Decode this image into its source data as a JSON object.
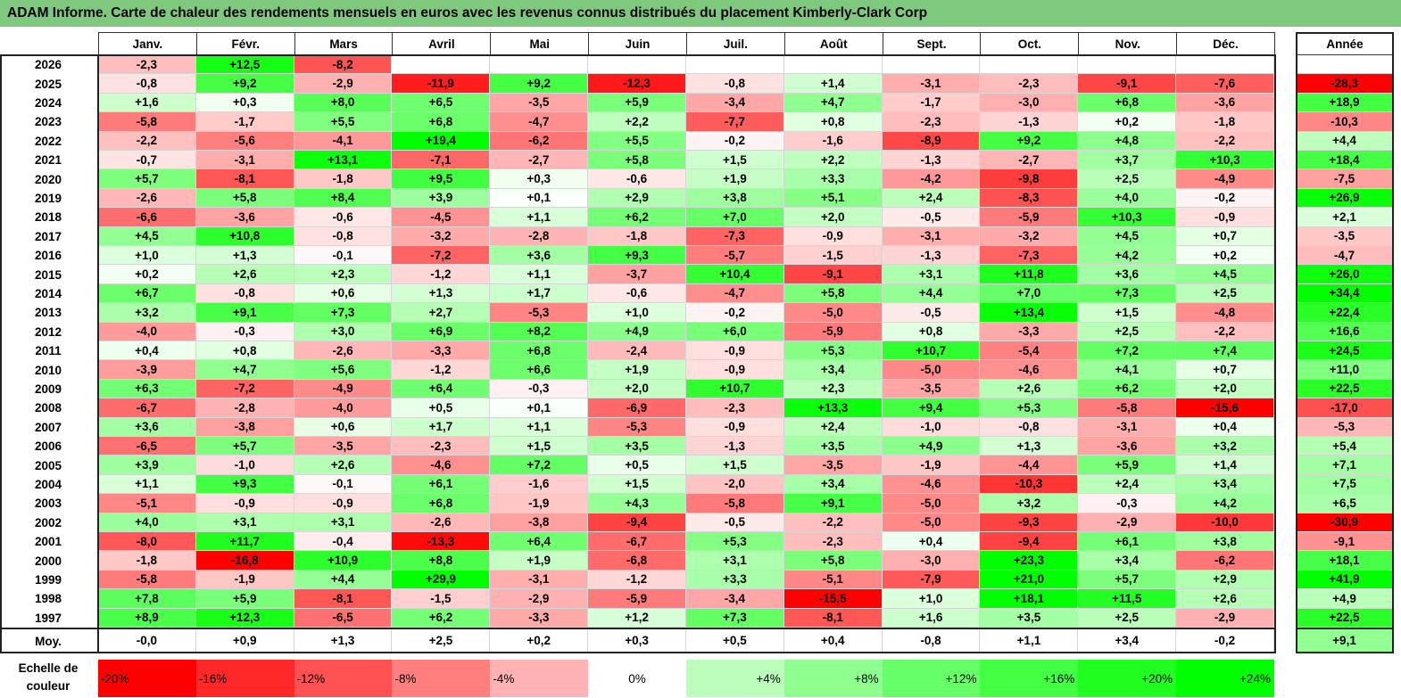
{
  "title": "ADAM Informe. Carte de chaleur des rendements mensuels en euros avec les revenus connus distribués du placement Kimberly-Clark Corp",
  "chart_data": {
    "type": "heatmap",
    "title": "ADAM Informe. Carte de chaleur des rendements mensuels en euros avec les revenus connus distribués du placement Kimberly-Clark Corp",
    "columns": [
      "Janv.",
      "Févr.",
      "Mars",
      "Avril",
      "Mai",
      "Juin",
      "Juil.",
      "Août",
      "Sept.",
      "Oct.",
      "Nov.",
      "Déc."
    ],
    "year_column": "Année",
    "rows": [
      {
        "label": "2026",
        "values": [
          "-2,3",
          "+12,5",
          "-8,2",
          "",
          "",
          "",
          "",
          "",
          "",
          "",
          "",
          ""
        ],
        "annual": ""
      },
      {
        "label": "2025",
        "values": [
          "-0,8",
          "+9,2",
          "-2,9",
          "-11,9",
          "+9,2",
          "-12,3",
          "-0,8",
          "+1,4",
          "-3,1",
          "-2,3",
          "-9,1",
          "-7,6"
        ],
        "annual": "-28,3"
      },
      {
        "label": "2024",
        "values": [
          "+1,6",
          "+0,3",
          "+8,0",
          "+6,5",
          "-3,5",
          "+5,9",
          "-3,4",
          "+4,7",
          "-1,7",
          "-3,0",
          "+6,8",
          "-3,6"
        ],
        "annual": "+18,9"
      },
      {
        "label": "2023",
        "values": [
          "-5,8",
          "-1,7",
          "+5,5",
          "+6,8",
          "-4,7",
          "+2,2",
          "-7,7",
          "+0,8",
          "-2,3",
          "-1,3",
          "+0,2",
          "-1,8"
        ],
        "annual": "-10,3"
      },
      {
        "label": "2022",
        "values": [
          "-2,2",
          "-5,6",
          "-4,1",
          "+19,4",
          "-6,2",
          "+5,5",
          "-0,2",
          "-1,6",
          "-8,9",
          "+9,2",
          "+4,8",
          "-2,2"
        ],
        "annual": "+4,4"
      },
      {
        "label": "2021",
        "values": [
          "-0,7",
          "-3,1",
          "+13,1",
          "-7,1",
          "-2,7",
          "+5,8",
          "+1,5",
          "+2,2",
          "-1,3",
          "-2,7",
          "+3,7",
          "+10,3"
        ],
        "annual": "+18,4"
      },
      {
        "label": "2020",
        "values": [
          "+5,7",
          "-8,1",
          "-1,8",
          "+9,5",
          "+0,3",
          "-0,6",
          "+1,9",
          "+3,3",
          "-4,2",
          "-9,8",
          "+2,5",
          "-4,9"
        ],
        "annual": "-7,5"
      },
      {
        "label": "2019",
        "values": [
          "-2,6",
          "+5,8",
          "+8,4",
          "+3,9",
          "+0,1",
          "+2,9",
          "+3,8",
          "+5,1",
          "+2,4",
          "-8,3",
          "+4,0",
          "-0,2"
        ],
        "annual": "+26,9"
      },
      {
        "label": "2018",
        "values": [
          "-6,6",
          "-3,6",
          "-0,6",
          "-4,5",
          "+1,1",
          "+6,2",
          "+7,0",
          "+2,0",
          "-0,5",
          "-5,9",
          "+10,3",
          "-0,9"
        ],
        "annual": "+2,1"
      },
      {
        "label": "2017",
        "values": [
          "+4,5",
          "+10,8",
          "-0,8",
          "-3,2",
          "-2,8",
          "-1,8",
          "-7,3",
          "-0,9",
          "-3,1",
          "-3,2",
          "+4,5",
          "+0,7"
        ],
        "annual": "-3,5"
      },
      {
        "label": "2016",
        "values": [
          "+1,0",
          "+1,3",
          "-0,1",
          "-7,2",
          "+3,6",
          "+9,3",
          "-5,7",
          "-1,5",
          "-1,3",
          "-7,3",
          "+4,2",
          "+0,2"
        ],
        "annual": "-4,7"
      },
      {
        "label": "2015",
        "values": [
          "+0,2",
          "+2,6",
          "+2,3",
          "-1,2",
          "+1,1",
          "-3,7",
          "+10,4",
          "-9,1",
          "+3,1",
          "+11,8",
          "+3,6",
          "+4,5"
        ],
        "annual": "+26,0"
      },
      {
        "label": "2014",
        "values": [
          "+6,7",
          "-0,8",
          "+0,6",
          "+1,3",
          "+1,7",
          "-0,6",
          "-4,7",
          "+5,8",
          "+4,4",
          "+7,0",
          "+7,3",
          "+2,5"
        ],
        "annual": "+34,4"
      },
      {
        "label": "2013",
        "values": [
          "+3,2",
          "+9,1",
          "+7,3",
          "+2,7",
          "-5,3",
          "+1,0",
          "-0,2",
          "-5,0",
          "-0,5",
          "+13,4",
          "+1,5",
          "-4,8"
        ],
        "annual": "+22,4"
      },
      {
        "label": "2012",
        "values": [
          "-4,0",
          "-0,3",
          "+3,0",
          "+6,9",
          "+8,2",
          "+4,9",
          "+6,0",
          "-5,9",
          "+0,8",
          "-3,3",
          "+2,5",
          "-2,2"
        ],
        "annual": "+16,6"
      },
      {
        "label": "2011",
        "values": [
          "+0,4",
          "+0,8",
          "-2,6",
          "-3,3",
          "+6,8",
          "-2,4",
          "-0,9",
          "+5,3",
          "+10,7",
          "-5,4",
          "+7,2",
          "+7,4"
        ],
        "annual": "+24,5"
      },
      {
        "label": "2010",
        "values": [
          "-3,9",
          "+4,7",
          "+5,6",
          "-1,2",
          "+6,6",
          "+1,9",
          "-0,9",
          "+3,4",
          "-5,0",
          "-4,6",
          "+4,1",
          "+0,7"
        ],
        "annual": "+11,0"
      },
      {
        "label": "2009",
        "values": [
          "+6,3",
          "-7,2",
          "-4,9",
          "+6,4",
          "-0,3",
          "+2,0",
          "+10,7",
          "+2,3",
          "-3,5",
          "+2,6",
          "+6,2",
          "+2,0"
        ],
        "annual": "+22,5"
      },
      {
        "label": "2008",
        "values": [
          "-6,7",
          "-2,8",
          "-4,0",
          "+0,5",
          "+0,1",
          "-6,9",
          "-2,3",
          "+13,3",
          "+9,4",
          "+5,3",
          "-5,8",
          "-15,6"
        ],
        "annual": "-17,0"
      },
      {
        "label": "2007",
        "values": [
          "+3,6",
          "-3,8",
          "+0,6",
          "+1,7",
          "+1,1",
          "-5,3",
          "-0,9",
          "+2,4",
          "-1,0",
          "-0,8",
          "-3,1",
          "+0,4"
        ],
        "annual": "-5,3"
      },
      {
        "label": "2006",
        "values": [
          "-6,5",
          "+5,7",
          "-3,5",
          "-2,3",
          "+1,5",
          "+3,5",
          "-1,3",
          "+3,5",
          "+4,9",
          "+1,3",
          "-3,6",
          "+3,2"
        ],
        "annual": "+5,4"
      },
      {
        "label": "2005",
        "values": [
          "+3,9",
          "-1,0",
          "+2,6",
          "-4,6",
          "+7,2",
          "+0,5",
          "+1,5",
          "-3,5",
          "-1,9",
          "-4,4",
          "+5,9",
          "+1,4"
        ],
        "annual": "+7,1"
      },
      {
        "label": "2004",
        "values": [
          "+1,1",
          "+9,3",
          "-0,1",
          "+6,1",
          "-1,6",
          "+1,5",
          "-2,0",
          "+3,4",
          "-4,6",
          "-10,3",
          "+2,4",
          "+3,4"
        ],
        "annual": "+7,5"
      },
      {
        "label": "2003",
        "values": [
          "-5,1",
          "-0,9",
          "-0,9",
          "+6,8",
          "-1,9",
          "+4,3",
          "-5,8",
          "+9,1",
          "-5,0",
          "+3,2",
          "-0,3",
          "+4,2"
        ],
        "annual": "+6,5"
      },
      {
        "label": "2002",
        "values": [
          "+4,0",
          "+3,1",
          "+3,1",
          "-2,6",
          "-3,8",
          "-9,4",
          "-0,5",
          "-2,2",
          "-5,0",
          "-9,3",
          "-2,9",
          "-10,0"
        ],
        "annual": "-30,9"
      },
      {
        "label": "2001",
        "values": [
          "-8,0",
          "+11,7",
          "-0,4",
          "-13,3",
          "+6,4",
          "-6,7",
          "+5,3",
          "-2,3",
          "+0,4",
          "-9,4",
          "+6,1",
          "+3,8"
        ],
        "annual": "-9,1"
      },
      {
        "label": "2000",
        "values": [
          "-1,8",
          "-16,8",
          "+10,9",
          "+8,8",
          "+1,9",
          "-6,8",
          "+3,1",
          "+5,8",
          "-3,0",
          "+23,3",
          "+3,4",
          "-6,2"
        ],
        "annual": "+18,1"
      },
      {
        "label": "1999",
        "values": [
          "-5,8",
          "-1,9",
          "+4,4",
          "+29,9",
          "-3,1",
          "-1,2",
          "+3,3",
          "-5,1",
          "-7,9",
          "+21,0",
          "+5,7",
          "+2,9"
        ],
        "annual": "+41,9"
      },
      {
        "label": "1998",
        "values": [
          "+7,8",
          "+5,9",
          "-8,1",
          "-1,5",
          "-2,9",
          "-5,9",
          "-3,4",
          "-15,5",
          "+1,0",
          "+18,1",
          "+11,5",
          "+2,6"
        ],
        "annual": "+4,9"
      },
      {
        "label": "1997",
        "values": [
          "+8,9",
          "+12,3",
          "-6,5",
          "+6,2",
          "-3,3",
          "+1,2",
          "+7,3",
          "-8,1",
          "+1,6",
          "+3,5",
          "+2,5",
          "-2,9"
        ],
        "annual": "+22,5"
      }
    ],
    "average": {
      "label": "Moy.",
      "values": [
        "-0,0",
        "+0,9",
        "+1,3",
        "+2,5",
        "+0,2",
        "+0,3",
        "+0,5",
        "+0,4",
        "-0,8",
        "+1,1",
        "+3,4",
        "-0,2"
      ],
      "annual": "+9,1"
    },
    "legend": {
      "label": "Echelle de couleur",
      "stops": [
        "-20%",
        "-16%",
        "-12%",
        "-8%",
        "-4%",
        "0%",
        "+4%",
        "+8%",
        "+12%",
        "+16%",
        "+20%",
        "+24%"
      ]
    },
    "colors": {
      "negative_max": "#ff0000",
      "neutral": "#ffffff",
      "positive_max": "#00ff00",
      "title_bg": "#7fc97f"
    }
  }
}
